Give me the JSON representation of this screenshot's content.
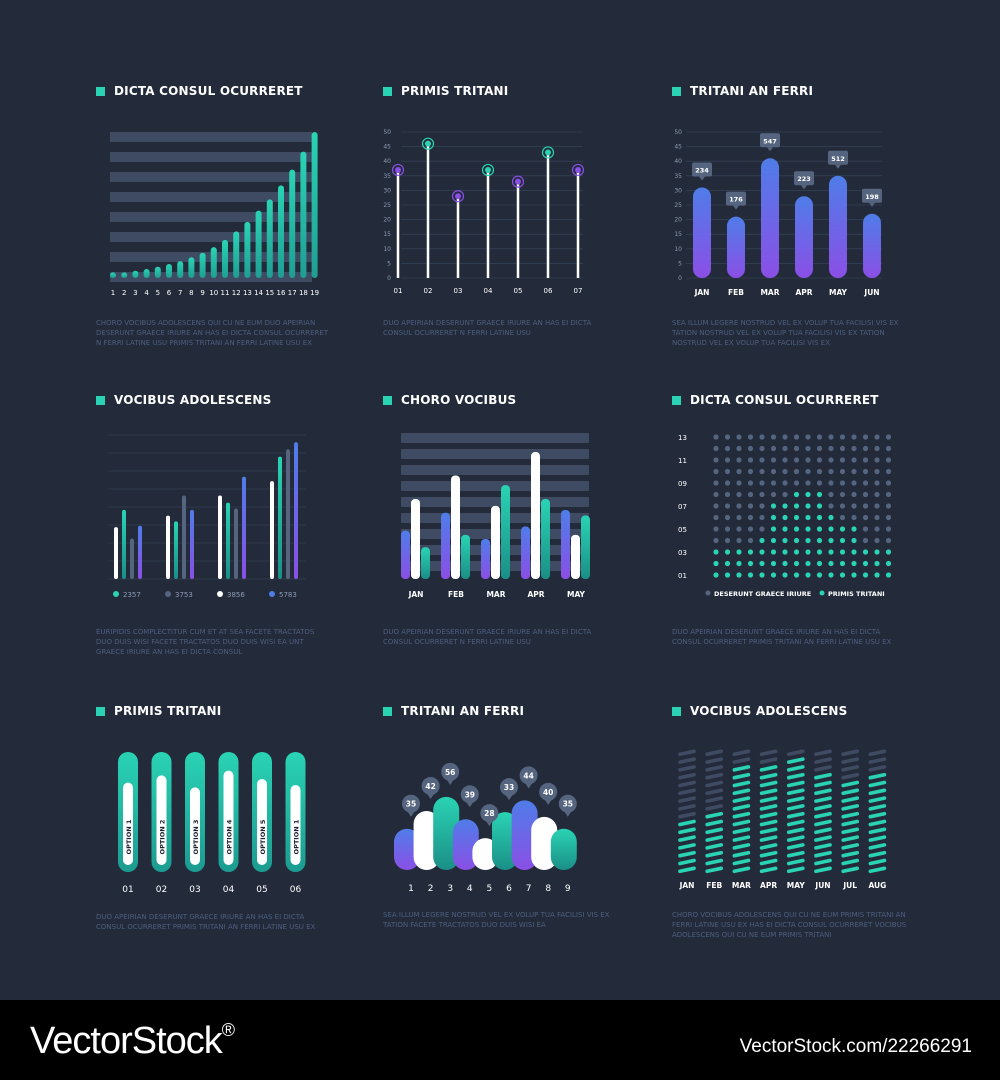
{
  "colors": {
    "background": "#232b3b",
    "grid": "#3a475d",
    "track": "#3f4b62",
    "teal": "#2ad3b4",
    "purple": "#8a4fe6",
    "blue": "#4f7de8",
    "slate": "#56657f",
    "white": "#ffffff",
    "label": "#ffffff",
    "muted": "#8c9ab3"
  },
  "panels": [
    {
      "title": "DICTA CONSUL OCURRERET",
      "description": "CHORO VOCIBUS ADOLESCENS QUI CU NE EUM DUO APEIRIAN DESERUNT GRAECE IRIURE AN HAS EI DICTA CONSUL OCURRERET N FERRI LATINE USU PRIMIS TRITANI AN FERRI LATINE USU EX"
    },
    {
      "title": "PRIMIS TRITANI",
      "description": "DUO APEIRIAN DESERUNT GRAECE IRIURE AN HAS EI DICTA CONSUL OCURRERET N FERRI LATINE USU"
    },
    {
      "title": "TRITANI AN FERRI",
      "description": "SEA ILLUM LEGERE NOSTRUD VEL EX VOLUP TUA FACILISI VIS EX TATION NOSTRUD VEL EX VOLUP TUA FACILISI VIS EX TATION NOSTRUD VEL EX VOLUP TUA FACILISI VIS EX"
    },
    {
      "title": "VOCIBUS ADOLESCENS",
      "description": "EURIPIDIS COMPLECTITUR CUM ET AT SEA FACETE TRACTATOS DUO DUIS WISI FACETE TRACTATOS DUO DUIS WISI EA UNT GRAECE IRIURE AN HAS EI DICTA CONSUL"
    },
    {
      "title": "CHORO VOCIBUS",
      "description": "DUO APEIRIAN DESERUNT GRAECE IRIURE AN HAS EI DICTA CONSUL OCURRERET N FERRI LATINE USU"
    },
    {
      "title": "DICTA CONSUL OCURRERET",
      "description": "DUO APEIRIAN DESERUNT GRAECE IRIURE AN HAS EI DICTA CONSUL OCURRERET PRIMIS TRITANI AN FERRI LATINE USU EX"
    },
    {
      "title": "PRIMIS TRITANI",
      "description": "DUO APEIRIAN DESERUNT GRAECE IRIURE AN HAS EI DICTA CONSUL OCURRERET PRIMIS TRITANI AN FERRI LATINE USU EX"
    },
    {
      "title": "TRITANI AN FERRI",
      "description": "SEA ILLUM LEGERE NOSTRUD VEL EX VOLUP TUA FACILISI VIS EX TATION FACETE TRACTATOS DUO DUIS WISI EA"
    },
    {
      "title": "VOCIBUS ADOLESCENS",
      "description": "CHORO VOCIBUS ADOLESCENS QUI CU NE EUM PRIMIS TRITANI AN FERRI LATINE USU EX HAS EI DICTA CONSUL OCURRERET VOCIBUS ADOLESCENS QUI CU NE EUM PRIMIS TRITANI"
    }
  ],
  "chart_data": [
    {
      "type": "bar",
      "categories": [
        "1",
        "2",
        "3",
        "4",
        "5",
        "6",
        "7",
        "8",
        "9",
        "10",
        "11",
        "12",
        "13",
        "14",
        "15",
        "16",
        "17",
        "18",
        "19"
      ],
      "values": [
        1,
        1,
        1.3,
        1.6,
        2,
        2.5,
        3,
        3.7,
        4.5,
        5.5,
        6.8,
        8.3,
        10,
        12,
        14,
        16.5,
        19.3,
        22.5,
        26
      ],
      "ylim": [
        0,
        26
      ],
      "grid": true
    },
    {
      "type": "scatter",
      "categories": [
        "01",
        "02",
        "03",
        "04",
        "05",
        "06",
        "07"
      ],
      "values": [
        37,
        46,
        28,
        37,
        33,
        43,
        37
      ],
      "ylim": [
        0,
        50
      ],
      "yticks": [
        0,
        5,
        10,
        15,
        20,
        25,
        30,
        35,
        40,
        45,
        50
      ],
      "grid": true
    },
    {
      "type": "bar",
      "categories": [
        "JAN",
        "FEB",
        "MAR",
        "APR",
        "MAY",
        "JUN"
      ],
      "values": [
        234,
        176,
        547,
        223,
        512,
        198
      ],
      "bar_heights": [
        31,
        21,
        41,
        28,
        35,
        22
      ],
      "ylim": [
        0,
        50
      ],
      "yticks": [
        0,
        5,
        10,
        15,
        20,
        25,
        30,
        35,
        40,
        45,
        50
      ],
      "grid": true
    },
    {
      "type": "bar",
      "groups": 4,
      "series": [
        {
          "values": [
            36,
            44,
            58,
            68
          ]
        },
        {
          "values": [
            48,
            40,
            53,
            85
          ]
        },
        {
          "values": [
            28,
            58,
            49,
            90
          ]
        },
        {
          "values": [
            37,
            48,
            71,
            95
          ]
        }
      ],
      "ylim": [
        0,
        100
      ],
      "legend": [
        "2357",
        "3753",
        "3856",
        "5783"
      ],
      "grid": true
    },
    {
      "type": "bar",
      "categories": [
        "JAN",
        "FEB",
        "MAR",
        "APR",
        "MAY"
      ],
      "series": [
        {
          "values": [
            35,
            48,
            29,
            38,
            50
          ]
        },
        {
          "values": [
            58,
            75,
            53,
            92,
            32
          ]
        },
        {
          "values": [
            23,
            32,
            68,
            58,
            46
          ]
        }
      ],
      "ylim": [
        0,
        100
      ],
      "grid": true
    },
    {
      "type": "bar",
      "yticks": [
        "01",
        "03",
        "05",
        "07",
        "09",
        "11",
        "13"
      ],
      "columns": 16,
      "teal_counts": [
        3,
        3,
        3,
        3,
        4,
        7,
        7,
        8,
        8,
        8,
        6,
        5,
        5,
        3,
        3,
        3
      ],
      "ylim": [
        0,
        13
      ],
      "legend": [
        "DESERUNT GRAECE IRIURE",
        "PRIMIS TRITANI"
      ]
    },
    {
      "type": "bar",
      "categories": [
        "01",
        "02",
        "03",
        "04",
        "05",
        "06"
      ],
      "values": [
        72,
        78,
        68,
        82,
        75,
        70
      ],
      "labels": [
        "OPTION 1",
        "OPTION 2",
        "OPTION 3",
        "OPTION 4",
        "OPTION 5",
        "OPTION 1"
      ]
    },
    {
      "type": "area",
      "categories": [
        "1",
        "2",
        "3",
        "4",
        "5",
        "6",
        "7",
        "8",
        "9"
      ],
      "values": [
        35,
        42,
        56,
        39,
        28,
        33,
        44,
        40,
        35
      ],
      "bar_heights": [
        35,
        50,
        62,
        43,
        27,
        49,
        59,
        45,
        35
      ]
    },
    {
      "type": "bar",
      "categories": [
        "JAN",
        "FEB",
        "MAR",
        "APR",
        "MAY",
        "JUN",
        "JUL",
        "AUG"
      ],
      "totals": 16,
      "values": [
        7,
        8,
        14,
        14,
        15,
        13,
        12,
        13
      ]
    }
  ]
}
